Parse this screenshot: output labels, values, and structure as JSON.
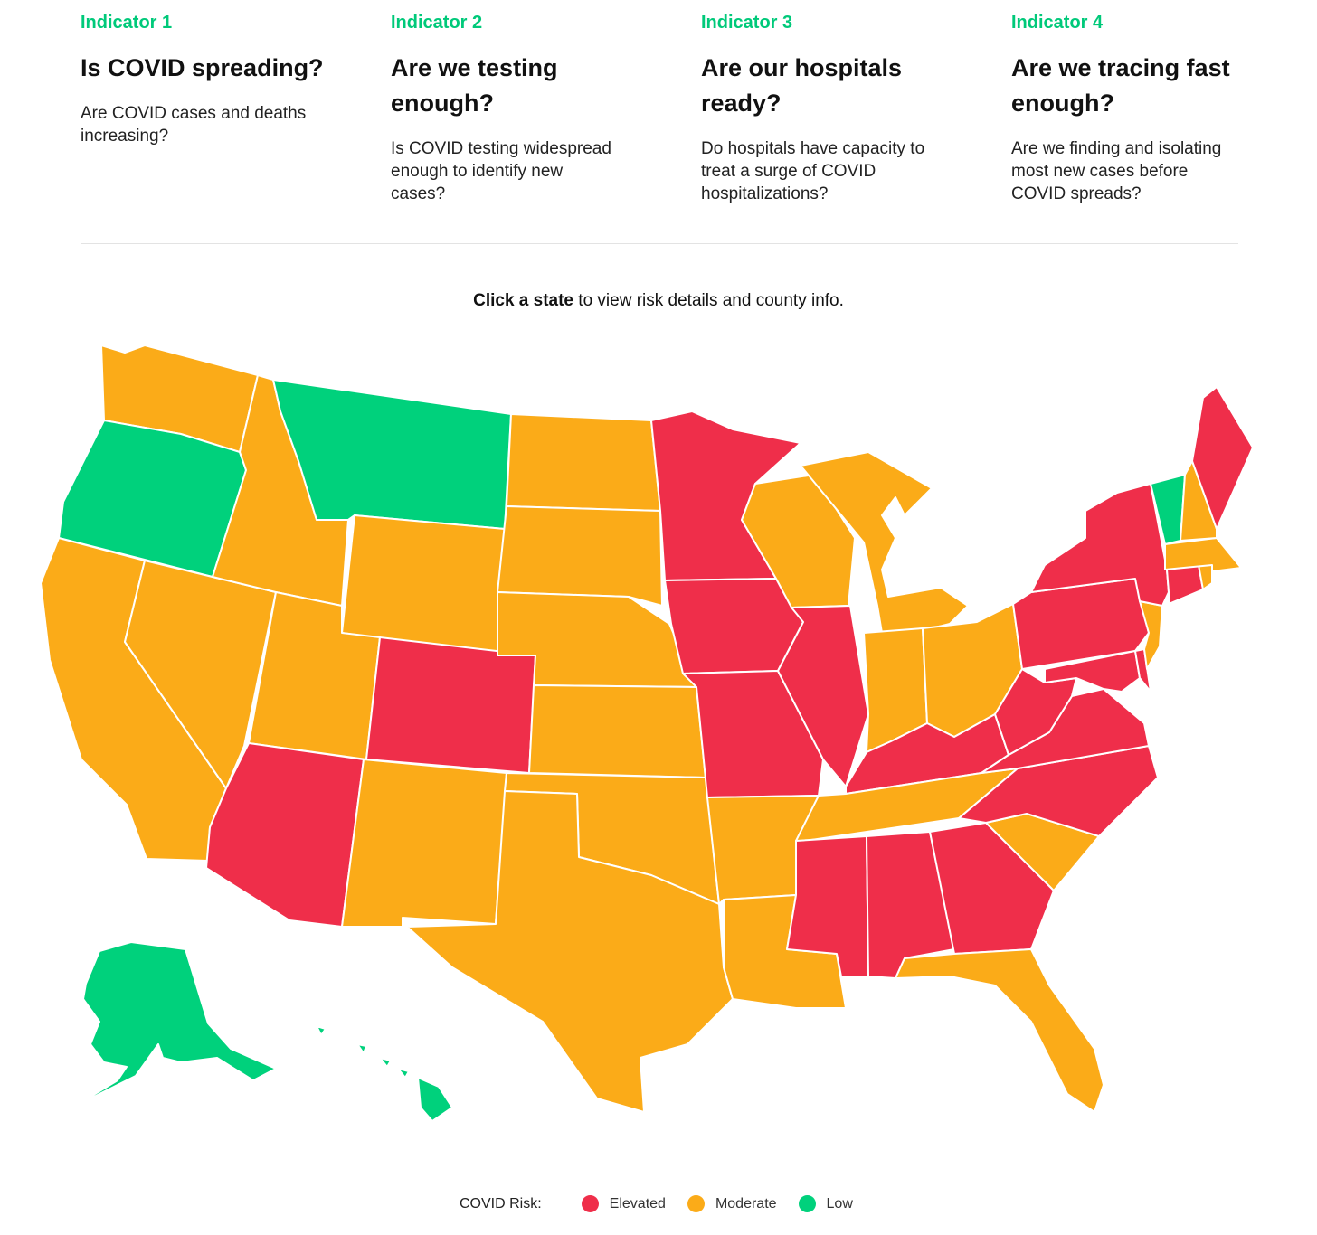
{
  "indicators": [
    {
      "label": "Indicator 1",
      "title": "Is COVID spreading?",
      "description": "Are COVID cases and deaths increasing?"
    },
    {
      "label": "Indicator 2",
      "title": "Are we testing enough?",
      "description": "Is COVID testing widespread enough to identify new cases?"
    },
    {
      "label": "Indicator 3",
      "title": "Are our hospitals ready?",
      "description": "Do hospitals have capacity to treat a surge of COVID hospitalizations?"
    },
    {
      "label": "Indicator 4",
      "title": "Are we tracing fast enough?",
      "description": "Are we finding and isolating most new cases before COVID spreads?"
    }
  ],
  "prompt": {
    "bold": "Click a state",
    "rest": " to view risk details and county info."
  },
  "colors": {
    "elevated": "#ef2e4a",
    "moderate": "#fbab18",
    "low": "#00d17c",
    "accent": "#00c97a"
  },
  "legend": {
    "title": "COVID Risk:",
    "items": [
      {
        "key": "elevated",
        "label": "Elevated"
      },
      {
        "key": "moderate",
        "label": "Moderate"
      },
      {
        "key": "low",
        "label": "Low"
      }
    ]
  },
  "map_data": {
    "states": [
      {
        "id": "WA",
        "risk": "moderate"
      },
      {
        "id": "OR",
        "risk": "low"
      },
      {
        "id": "CA",
        "risk": "moderate"
      },
      {
        "id": "ID",
        "risk": "moderate"
      },
      {
        "id": "NV",
        "risk": "moderate"
      },
      {
        "id": "MT",
        "risk": "low"
      },
      {
        "id": "WY",
        "risk": "moderate"
      },
      {
        "id": "UT",
        "risk": "moderate"
      },
      {
        "id": "AZ",
        "risk": "elevated"
      },
      {
        "id": "CO",
        "risk": "elevated"
      },
      {
        "id": "NM",
        "risk": "moderate"
      },
      {
        "id": "ND",
        "risk": "moderate"
      },
      {
        "id": "SD",
        "risk": "moderate"
      },
      {
        "id": "NE",
        "risk": "moderate"
      },
      {
        "id": "KS",
        "risk": "moderate"
      },
      {
        "id": "OK",
        "risk": "moderate"
      },
      {
        "id": "TX",
        "risk": "moderate"
      },
      {
        "id": "MN",
        "risk": "elevated"
      },
      {
        "id": "IA",
        "risk": "elevated"
      },
      {
        "id": "MO",
        "risk": "elevated"
      },
      {
        "id": "AR",
        "risk": "moderate"
      },
      {
        "id": "LA",
        "risk": "moderate"
      },
      {
        "id": "WI",
        "risk": "moderate"
      },
      {
        "id": "IL",
        "risk": "elevated"
      },
      {
        "id": "MS",
        "risk": "elevated"
      },
      {
        "id": "MI",
        "risk": "moderate"
      },
      {
        "id": "IN",
        "risk": "moderate"
      },
      {
        "id": "KY",
        "risk": "elevated"
      },
      {
        "id": "TN",
        "risk": "moderate"
      },
      {
        "id": "AL",
        "risk": "elevated"
      },
      {
        "id": "OH",
        "risk": "moderate"
      },
      {
        "id": "GA",
        "risk": "elevated"
      },
      {
        "id": "FL",
        "risk": "moderate"
      },
      {
        "id": "SC",
        "risk": "moderate"
      },
      {
        "id": "NC",
        "risk": "elevated"
      },
      {
        "id": "VA",
        "risk": "elevated"
      },
      {
        "id": "WV",
        "risk": "elevated"
      },
      {
        "id": "PA",
        "risk": "elevated"
      },
      {
        "id": "NY",
        "risk": "elevated"
      },
      {
        "id": "MD",
        "risk": "elevated"
      },
      {
        "id": "DE",
        "risk": "elevated"
      },
      {
        "id": "NJ",
        "risk": "moderate"
      },
      {
        "id": "CT",
        "risk": "elevated"
      },
      {
        "id": "RI",
        "risk": "moderate"
      },
      {
        "id": "MA",
        "risk": "moderate"
      },
      {
        "id": "VT",
        "risk": "low"
      },
      {
        "id": "NH",
        "risk": "moderate"
      },
      {
        "id": "ME",
        "risk": "elevated"
      },
      {
        "id": "AK",
        "risk": "low"
      },
      {
        "id": "HI",
        "risk": "low"
      }
    ]
  }
}
